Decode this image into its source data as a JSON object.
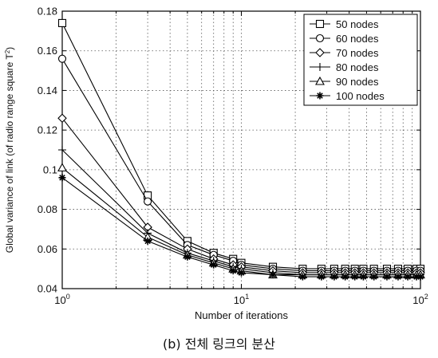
{
  "chart_data": {
    "type": "line",
    "xlabel": "Number of iterations",
    "ylabel": "Global variance of link (of radio range square T",
    "ylabel_sup": "2",
    "ylabel_end": ")",
    "xscale": "log",
    "xlim": [
      1,
      100
    ],
    "ylim": [
      0.04,
      0.18
    ],
    "grid": "on (dotted)",
    "legend_position": "top-right",
    "x_ticks": [
      1,
      10,
      100
    ],
    "x_tick_labels": [
      {
        "base": "10",
        "exp": "0"
      },
      {
        "base": "10",
        "exp": "1"
      },
      {
        "base": "10",
        "exp": "2"
      }
    ],
    "y_ticks": [
      0.04,
      0.06,
      0.08,
      0.1,
      0.12,
      0.14,
      0.16,
      0.18
    ],
    "y_tick_labels": [
      "0.04",
      "0.06",
      "0.08",
      "0.1",
      "0.12",
      "0.14",
      "0.16",
      "0.18"
    ],
    "x": [
      1,
      3,
      5,
      7,
      9,
      10,
      15,
      22,
      28,
      33,
      38,
      43,
      48,
      55,
      65,
      75,
      85,
      95,
      100
    ],
    "series": [
      {
        "name": "50 nodes",
        "marker": "square",
        "values": [
          0.174,
          0.087,
          0.064,
          0.058,
          0.055,
          0.053,
          0.051,
          0.05,
          0.05,
          0.05,
          0.05,
          0.05,
          0.05,
          0.05,
          0.05,
          0.05,
          0.05,
          0.05,
          0.05
        ]
      },
      {
        "name": "60 nodes",
        "marker": "circle",
        "values": [
          0.156,
          0.084,
          0.062,
          0.057,
          0.054,
          0.052,
          0.05,
          0.049,
          0.049,
          0.049,
          0.049,
          0.049,
          0.049,
          0.049,
          0.049,
          0.049,
          0.049,
          0.049,
          0.049
        ]
      },
      {
        "name": "70 nodes",
        "marker": "diamond",
        "values": [
          0.126,
          0.071,
          0.06,
          0.055,
          0.052,
          0.051,
          0.049,
          0.048,
          0.048,
          0.048,
          0.048,
          0.048,
          0.048,
          0.048,
          0.048,
          0.048,
          0.048,
          0.048,
          0.048
        ]
      },
      {
        "name": "80 nodes",
        "marker": "plus",
        "values": [
          0.11,
          0.068,
          0.058,
          0.054,
          0.051,
          0.05,
          0.048,
          0.047,
          0.047,
          0.047,
          0.047,
          0.047,
          0.047,
          0.047,
          0.047,
          0.047,
          0.047,
          0.047,
          0.047
        ]
      },
      {
        "name": "90 nodes",
        "marker": "triangle",
        "values": [
          0.101,
          0.066,
          0.057,
          0.053,
          0.05,
          0.049,
          0.047,
          0.047,
          0.047,
          0.047,
          0.047,
          0.047,
          0.047,
          0.047,
          0.047,
          0.047,
          0.047,
          0.047,
          0.047
        ]
      },
      {
        "name": "100 nodes",
        "marker": "star",
        "values": [
          0.096,
          0.064,
          0.056,
          0.052,
          0.049,
          0.048,
          0.047,
          0.046,
          0.046,
          0.046,
          0.046,
          0.046,
          0.046,
          0.046,
          0.046,
          0.046,
          0.046,
          0.046,
          0.046
        ]
      }
    ]
  },
  "caption": "(b) 전체 링크의 분산"
}
